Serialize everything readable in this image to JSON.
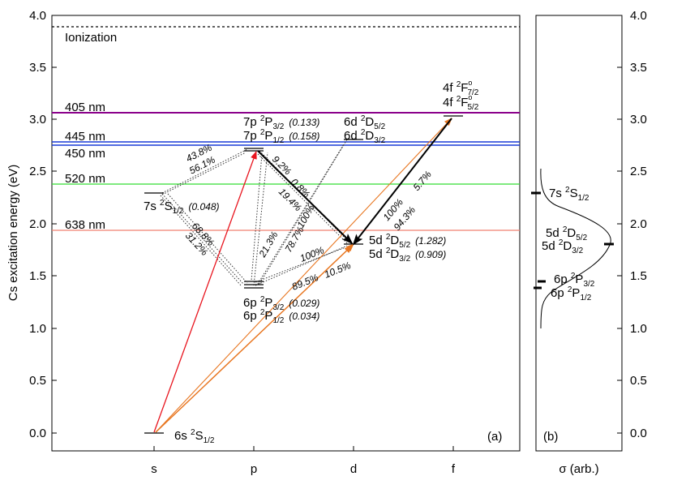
{
  "axes": {
    "ylabel": "Cs excitation energy (eV)",
    "yticks": [
      "0.0",
      "0.5",
      "1.0",
      "1.5",
      "2.0",
      "2.5",
      "3.0",
      "3.5",
      "4.0"
    ],
    "xticks": [
      "s",
      "p",
      "d",
      "f"
    ],
    "panel_b_xlabel": "σ (arb.)",
    "panel_a": "(a)",
    "panel_b": "(b)"
  },
  "ionization": "Ionization",
  "lasers": [
    {
      "label": "405 nm",
      "energy": 3.06,
      "color": "#8b008b"
    },
    {
      "label": "445 nm",
      "energy": 2.785,
      "color": "#1a3bd6"
    },
    {
      "label": "450 nm",
      "energy": 2.755,
      "color": "#1a3bd6"
    },
    {
      "label": "520 nm",
      "energy": 2.385,
      "color": "#33dd33"
    },
    {
      "label": "638 nm",
      "energy": 1.943,
      "color": "#f08070"
    }
  ],
  "levels": {
    "s6": {
      "term": "6s",
      "sym": "S",
      "sub": "1/2",
      "energy": 0.0
    },
    "s7": {
      "term": "7s",
      "sym": "S",
      "sub": "1/2",
      "energy": 2.298,
      "note": "(0.048)"
    },
    "p6_32": {
      "term": "6p",
      "sym": "P",
      "sub": "3/2",
      "energy": 1.455,
      "note": "(0.029)"
    },
    "p6_12": {
      "term": "6p",
      "sym": "P",
      "sub": "1/2",
      "energy": 1.386,
      "note": "(0.034)"
    },
    "p7_32": {
      "term": "7p",
      "sym": "P",
      "sub": "3/2",
      "energy": 2.721,
      "note": "(0.133)"
    },
    "p7_12": {
      "term": "7p",
      "sym": "P",
      "sub": "1/2",
      "energy": 2.698,
      "note": "(0.158)"
    },
    "d5_52": {
      "term": "5d",
      "sym": "D",
      "sub": "5/2",
      "energy": 1.81,
      "note": "(1.282)"
    },
    "d5_32": {
      "term": "5d",
      "sym": "D",
      "sub": "3/2",
      "energy": 1.798,
      "note": "(0.909)"
    },
    "d6_52": {
      "term": "6d",
      "sym": "D",
      "sub": "5/2",
      "energy": 2.807
    },
    "d6_32": {
      "term": "6d",
      "sym": "D",
      "sub": "3/2",
      "energy": 2.8
    },
    "f4_72": {
      "term": "4f",
      "sym": "F",
      "sub": "7/2",
      "energy": 3.034
    },
    "f4_52": {
      "term": "4f",
      "sym": "F",
      "sub": "5/2",
      "energy": 3.034
    }
  },
  "branching": {
    "s7_p32": "43.8%",
    "s7_p12": "56.1%",
    "s7_6p32": "68.8%",
    "s7_6p12": "31.2%",
    "p7_s7": "9.2%",
    "p7_d6": "0.8%",
    "p7_d5": "19.4%",
    "p6_21": "21.3%",
    "p6_100a": "100%",
    "p6_787": "78.7%",
    "d5_p6_100": "100%",
    "d5_p6_895": "89.5%",
    "d5_p6_105": "10.5%",
    "f_d5_100": "100%",
    "f_d5_943": "94.3%",
    "f_d5_57": "5.7%"
  },
  "panel_b": {
    "labels": [
      {
        "term": "7s",
        "sym": "S",
        "sub": "1/2"
      },
      {
        "term": "5d",
        "sym": "D",
        "sub": "5/2"
      },
      {
        "term": "5d",
        "sym": "D",
        "sub": "3/2"
      },
      {
        "term": "6p",
        "sym": "P",
        "sub": "3/2"
      },
      {
        "term": "6p",
        "sym": "P",
        "sub": "1/2"
      }
    ]
  },
  "colors": {
    "red": "#e8141e",
    "orange": "#e87722",
    "black": "#000000"
  }
}
